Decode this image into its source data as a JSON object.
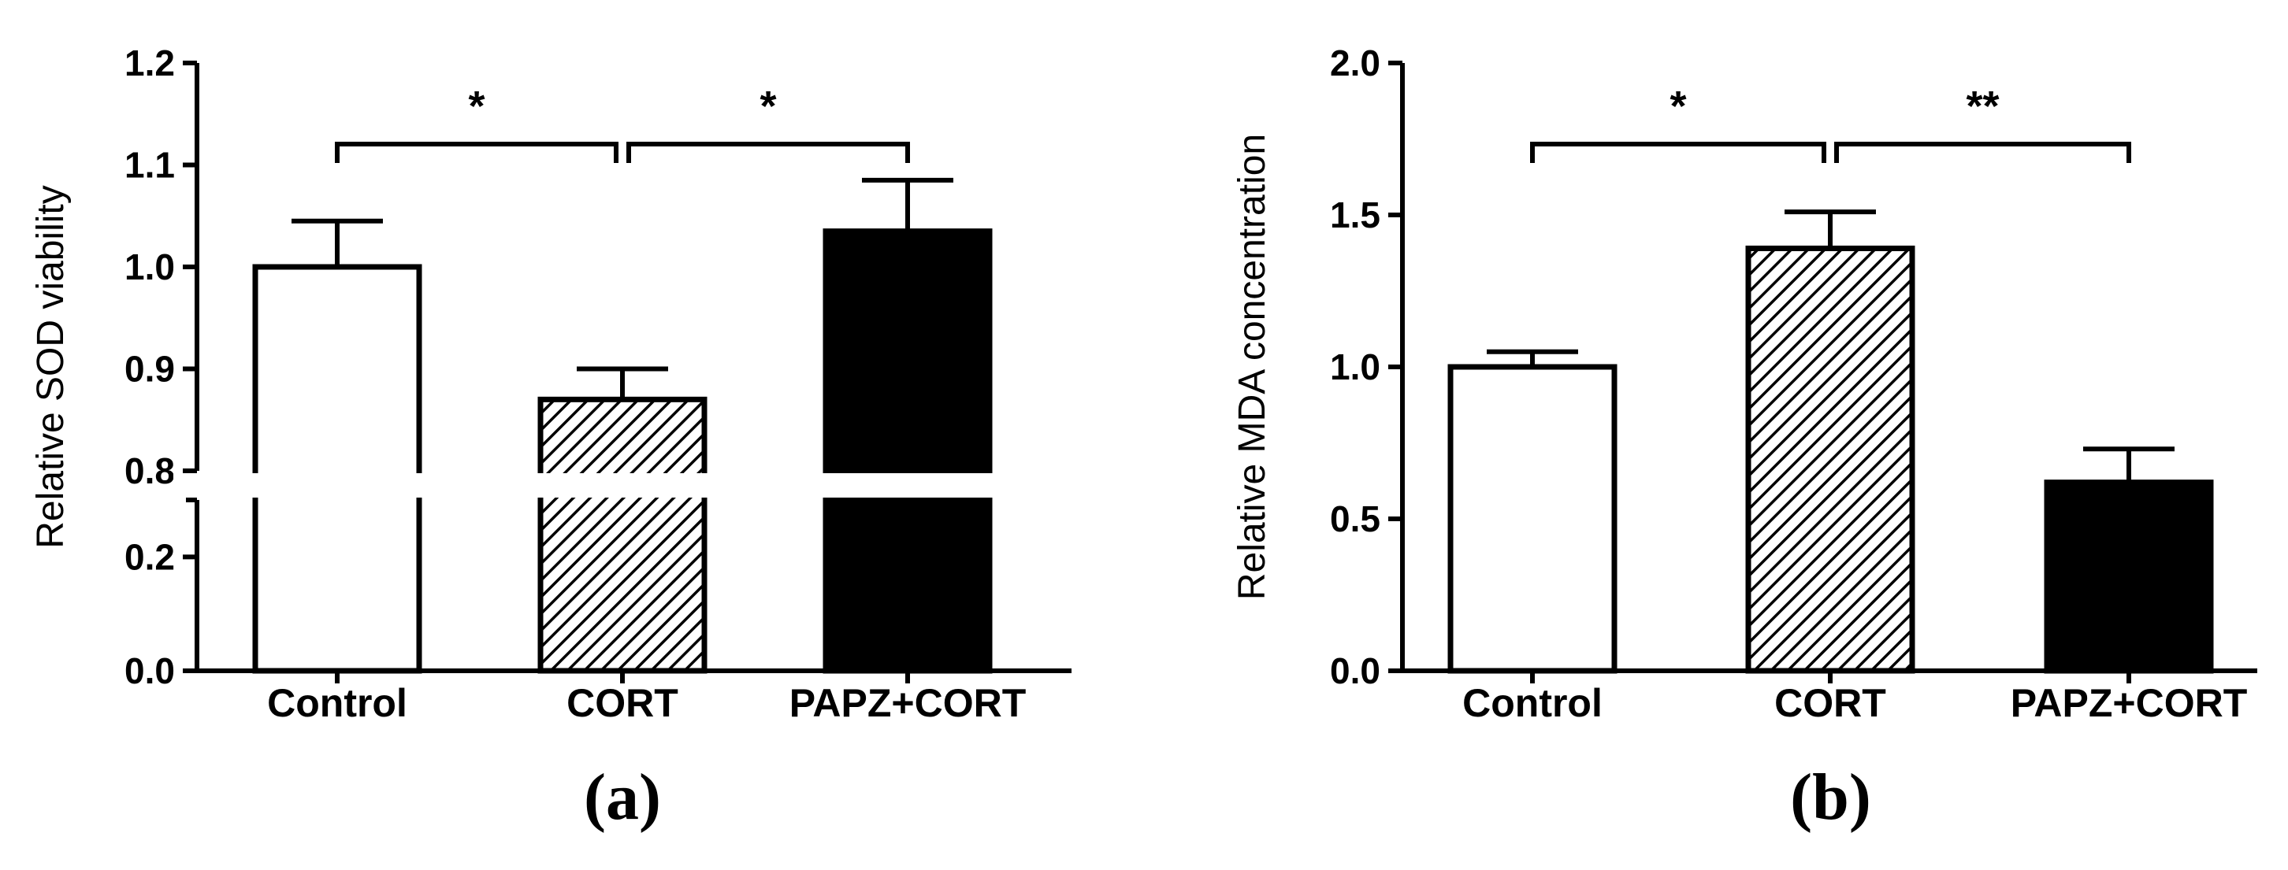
{
  "chart_data": [
    {
      "type": "bar",
      "panel_label": "(a)",
      "ylabel": "Relative SOD viability",
      "categories": [
        "Control",
        "CORT",
        "PAPZ+CORT"
      ],
      "values": [
        1.0,
        0.87,
        1.035
      ],
      "errors": [
        0.045,
        0.03,
        0.05
      ],
      "fills": [
        "white",
        "hatched",
        "black"
      ],
      "broken_axis": true,
      "ylim_lower": [
        0.0,
        0.3
      ],
      "ylim_upper": [
        0.8,
        1.2
      ],
      "yticks_lower": [
        "0.0",
        "0.2"
      ],
      "yticks_upper": [
        "0.8",
        "0.9",
        "1.0",
        "1.1",
        "1.2"
      ],
      "significance": [
        {
          "from": 0,
          "to": 1,
          "label": "*"
        },
        {
          "from": 1,
          "to": 2,
          "label": "*"
        }
      ],
      "grid": false
    },
    {
      "type": "bar",
      "panel_label": "(b)",
      "ylabel": "Relative MDA concentration",
      "categories": [
        "Control",
        "CORT",
        "PAPZ+CORT"
      ],
      "values": [
        1.0,
        1.39,
        0.62
      ],
      "errors": [
        0.05,
        0.12,
        0.11
      ],
      "fills": [
        "white",
        "hatched",
        "black"
      ],
      "broken_axis": false,
      "ylim": [
        0.0,
        2.0
      ],
      "yticks": [
        "0.0",
        "0.5",
        "1.0",
        "1.5",
        "2.0"
      ],
      "significance": [
        {
          "from": 0,
          "to": 1,
          "label": "*"
        },
        {
          "from": 1,
          "to": 2,
          "label": "**"
        }
      ],
      "grid": false
    }
  ]
}
